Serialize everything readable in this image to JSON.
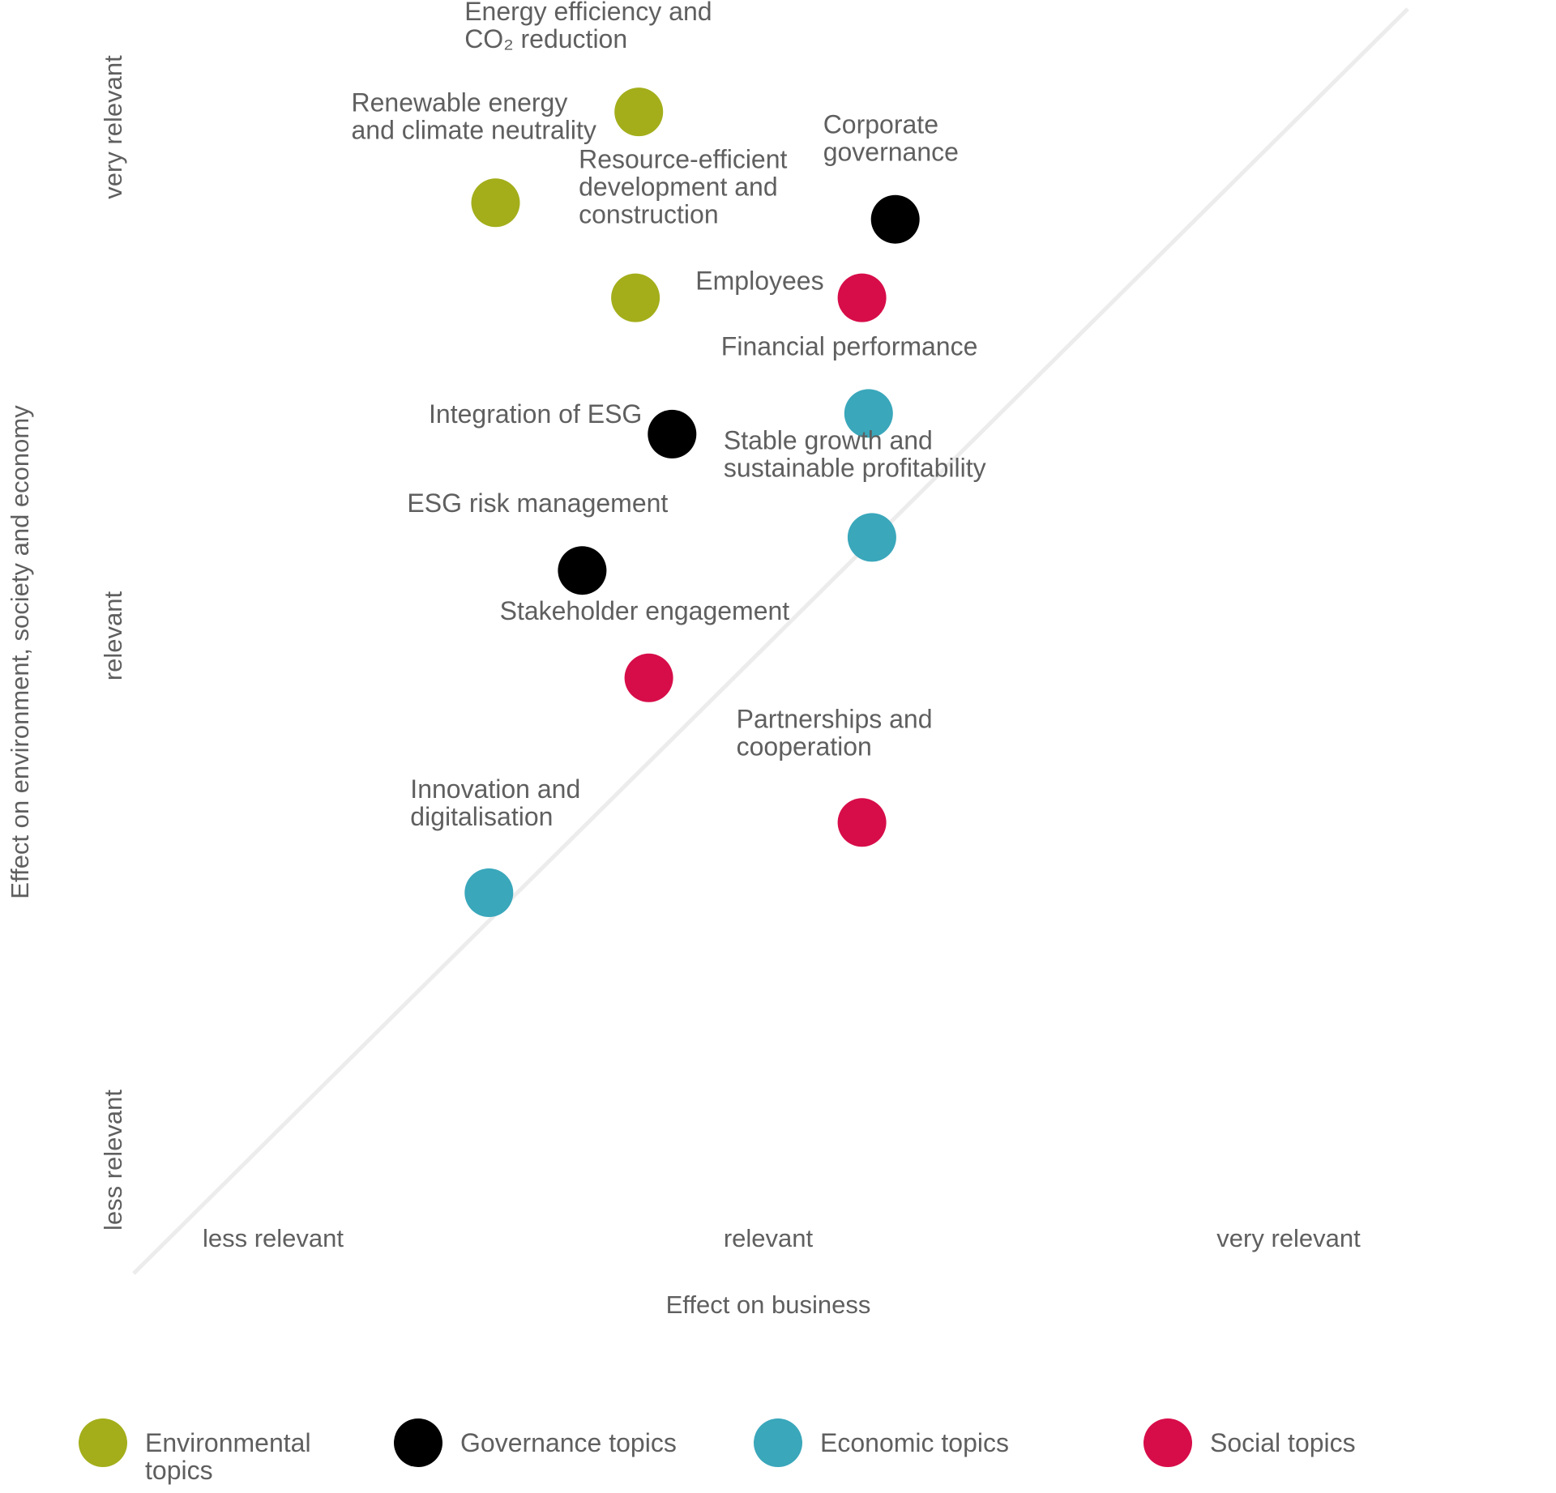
{
  "chart_data": {
    "type": "scatter",
    "title": "",
    "xlabel": "Effect on business",
    "ylabel": "Effect on environment, society and economy",
    "x_ticks": [
      "less relevant",
      "relevant",
      "very relevant"
    ],
    "y_ticks": [
      "less relevant",
      "relevant",
      "very relevant"
    ],
    "xlim": [
      0,
      3
    ],
    "ylim": [
      0,
      3
    ],
    "diagonal_reference_line": true,
    "grid": false,
    "legend_position": "bottom",
    "categories": [
      {
        "name": "Environmental topics",
        "color": "#a3ae1a"
      },
      {
        "name": "Governance topics",
        "color": "#000000"
      },
      {
        "name": "Economic topics",
        "color": "#3aa7bb"
      },
      {
        "name": "Social topics",
        "color": "#d70d49"
      }
    ],
    "points": [
      {
        "label": "Energy efficiency and CO₂ reduction",
        "category": "Environmental topics",
        "x": 1.63,
        "y": 2.69
      },
      {
        "label": "Renewable energy and climate neutrality",
        "category": "Environmental topics",
        "x": 1.2,
        "y": 2.47
      },
      {
        "label": "Resource-efficient development and construction",
        "category": "Environmental topics",
        "x": 1.62,
        "y": 2.24
      },
      {
        "label": "Corporate governance",
        "category": "Governance topics",
        "x": 2.4,
        "y": 2.43
      },
      {
        "label": "Employees",
        "category": "Social topics",
        "x": 2.3,
        "y": 2.24
      },
      {
        "label": "Financial performance",
        "category": "Economic topics",
        "x": 2.32,
        "y": 1.96
      },
      {
        "label": "Integration of ESG",
        "category": "Governance topics",
        "x": 1.73,
        "y": 1.91
      },
      {
        "label": "Stable growth and sustainable profitability",
        "category": "Economic topics",
        "x": 2.33,
        "y": 1.66
      },
      {
        "label": "ESG risk management",
        "category": "Governance topics",
        "x": 1.46,
        "y": 1.58
      },
      {
        "label": "Stakeholder engagement",
        "category": "Social topics",
        "x": 1.66,
        "y": 1.32
      },
      {
        "label": "Partnerships and cooperation",
        "category": "Social topics",
        "x": 2.3,
        "y": 0.97
      },
      {
        "label": "Innovation and digitalisation",
        "category": "Economic topics",
        "x": 1.18,
        "y": 0.8
      }
    ],
    "label_lines": [
      [
        "Energy efficiency and",
        "CO₂ reduction"
      ],
      [
        "Renewable energy",
        "and climate neutrality"
      ],
      [
        "Resource-efficient",
        "development and",
        "construction"
      ],
      [
        "Corporate",
        "governance"
      ],
      [
        "Employees"
      ],
      [
        "Financial performance"
      ],
      [
        "Integration of ESG"
      ],
      [
        "Stable growth and",
        "sustainable profitability"
      ],
      [
        "ESG risk management"
      ],
      [
        "Stakeholder engagement"
      ],
      [
        "Partnerships and",
        "cooperation"
      ],
      [
        "Innovation and",
        "digitalisation"
      ]
    ],
    "legend_lines": [
      [
        "Environmental",
        "topics"
      ],
      [
        "Governance topics"
      ],
      [
        "Economic topics"
      ],
      [
        "Social topics"
      ]
    ]
  }
}
